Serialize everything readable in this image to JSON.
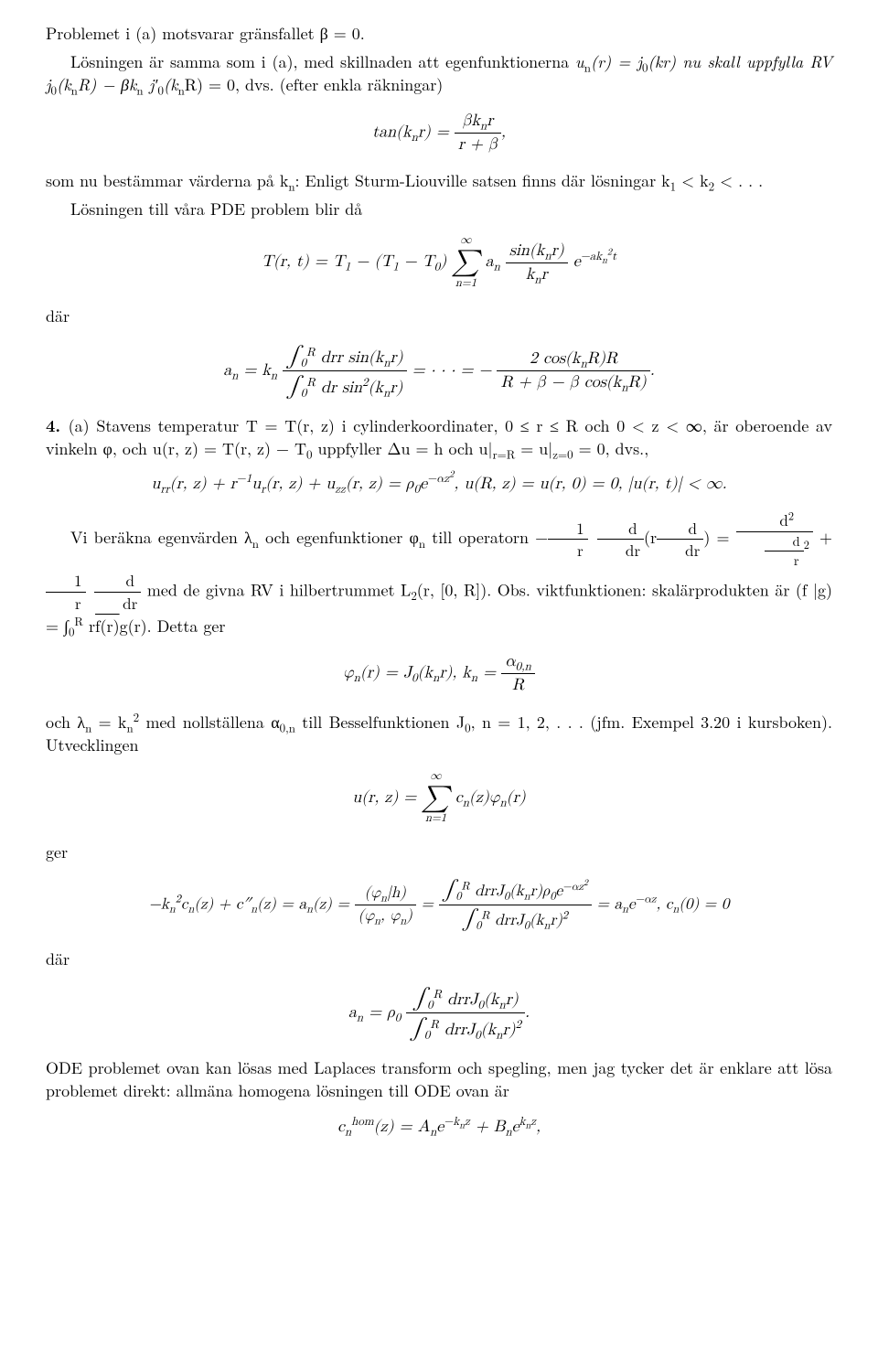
{
  "p1": "Problemet i (a) motsvarar gränsfallet β = 0.",
  "p2a": "Lösningen är samma som i (a), med skillnaden att egenfunktionerna ",
  "p2b": "u",
  "p2c": "n",
  "p2d": "(r) = j",
  "p2e": "0",
  "p2f": "(kr) nu skall uppfylla RV j",
  "p2g": "0",
  "p2h": "(k",
  "p2i": "n",
  "p2j": "R) − βk",
  "p2k": "n",
  "p2l": " j′",
  "p2m": "0",
  "p2n": "(k",
  "p2o": "n",
  "p2p": "R) = 0, dvs. (efter enkla räkningar)",
  "eq1a": "tan(k",
  "eq1b": "n",
  "eq1c": "r) = ",
  "eq1numA": "βk",
  "eq1numB": "n",
  "eq1numC": "r",
  "eq1den": "r + β",
  "eq1tail": ",",
  "p3a": "som nu bestämmar värderna på k",
  "p3b": "n",
  "p3c": ": Enligt Sturm-Liouville satsen finns där lösningar k",
  "p3d": "1",
  "p3e": " < k",
  "p3f": "2",
  "p3g": " < . . .",
  "p4": "Lösningen till våra PDE problem blir då",
  "eq2a": "T(r, t) = T",
  "eq2b": "1",
  "eq2c": " − (T",
  "eq2d": "1",
  "eq2e": " − T",
  "eq2f": "0",
  "eq2g": ") ",
  "eq2sumTop": "∞",
  "eq2sumBot": "n=1",
  "eq2h": " a",
  "eq2i": "n",
  "eq2fracNumA": "sin(k",
  "eq2fracNumB": "n",
  "eq2fracNumC": "r)",
  "eq2fracDenA": "k",
  "eq2fracDenB": "n",
  "eq2fracDenC": "r",
  "eq2j": " e",
  "eq2k": "−ak",
  "eq2l": "n",
  "eq2m": "2",
  "eq2nn": "t",
  "p5": "där",
  "eq3a": "a",
  "eq3b": "n",
  "eq3c": " = k",
  "eq3d": "n",
  "eq3numA": "∫",
  "eq3numTop": "R",
  "eq3numBot": "0",
  "eq3numB": " drr sin(k",
  "eq3numC": "n",
  "eq3numD": "r)",
  "eq3denA": "∫",
  "eq3denTop": "R",
  "eq3denBot": "0",
  "eq3denB": " dr sin",
  "eq3denC": "2",
  "eq3denD": "(k",
  "eq3denE": "n",
  "eq3denF": "r)",
  "eq3e": " = · · · = − ",
  "eq3f_numA": "2 cos(k",
  "eq3f_numB": "n",
  "eq3f_numC": "R)R",
  "eq3f_denA": "R + β − β cos(k",
  "eq3f_denB": "n",
  "eq3f_denC": "R)",
  "eq3g": ".",
  "p6a": "4. ",
  "p6b": "(a) Stavens temperatur T = T(r, z) i cylinderkoordinater, 0 ≤ r ≤ R och 0 < z < ∞, är oberoende av vinkeln φ, och u(r, z) = T(r, z) − T",
  "p6c": "0",
  "p6d": " uppfyller Δu = h och u|",
  "p6e": "r=R",
  "p6f": " = u|",
  "p6g": "z=0",
  "p6h": " = 0, dvs.,",
  "eq4a": "u",
  "eq4b": "rr",
  "eq4c": "(r, z) + r",
  "eq4d": "−1",
  "eq4e": "u",
  "eq4f": "r",
  "eq4g": "(r, z) + u",
  "eq4h": "zz",
  "eq4i": "(r, z) = ρ",
  "eq4j": "0",
  "eq4k": "e",
  "eq4l": "−αz",
  "eq4m": "2",
  "eq4n": ",   u(R, z) = u(r, 0) = 0,   |u(r, t)| < ∞.",
  "p7a": "Vi beräkna egenvärden λ",
  "p7b": "n",
  "p7c": " och egenfunktioner φ",
  "p7d": "n",
  "p7e": " till operatorn −",
  "p7frac1num": "1",
  "p7frac1den": "r",
  "p7frac2num": "d",
  "p7frac2den": "dr",
  "p7f": "(r",
  "p7frac3num": "d",
  "p7frac3den": "dr",
  "p7g": ") = ",
  "p7frac4numA": "d",
  "p7frac4numB": "2",
  "p7frac4denA": "d",
  "p7frac4denB": "r",
  "p7frac4denC": "2",
  "p7h": " + ",
  "p7frac5num": "1",
  "p7frac5den": "r",
  "p7frac6num": "d",
  "p7frac6den": "dr",
  "p7i": " med de givna RV i hilbertrummet L",
  "p7j": "2",
  "p7k": "(r, [0, R]). Obs. viktfunktionen: skalärprodukten är (f |g) = ∫",
  "p7intTop": "R",
  "p7intBot": "0",
  "p7l": " r",
  "p7m": "f(r)",
  "p7n": "g(r). Detta ger",
  "eq5a": "φ",
  "eq5b": "n",
  "eq5c": "(r) = J",
  "eq5d": "0",
  "eq5e": "(k",
  "eq5f": "n",
  "eq5g": "r),   k",
  "eq5h": "n",
  "eq5i": " = ",
  "eq5numA": "α",
  "eq5numB": "0,n",
  "eq5den": "R",
  "p8a": "och λ",
  "p8b": "n",
  "p8c": " = k",
  "p8d": "n",
  "p8e": "2",
  "p8f": " med nollställena α",
  "p8g": "0,n",
  "p8h": " till Besselfunktionen J",
  "p8i": "0",
  "p8j": ", n = 1, 2, . . . (jfm. Exempel 3.20 i kursboken). Utvecklingen",
  "eq6a": "u(r, z) = ",
  "eq6sumTop": "∞",
  "eq6sumBot": "n=1",
  "eq6b": " c",
  "eq6c": "n",
  "eq6d": "(z)φ",
  "eq6e": "n",
  "eq6f": "(r)",
  "p9": "ger",
  "eq7a": "−k",
  "eq7b": "n",
  "eq7c": "2",
  "eq7d": "c",
  "eq7e": "n",
  "eq7f": "(z) + c″",
  "eq7g": "n",
  "eq7h": "(z) = a",
  "eq7i": "n",
  "eq7j": "(z) = ",
  "eq7k_num": "(φ",
  "eq7k_numB": "n",
  "eq7k_numC": "|h)",
  "eq7k_den": "(φ",
  "eq7k_denB": "n",
  "eq7k_denC": ", φ",
  "eq7k_denD": "n",
  "eq7k_denE": ")",
  "eq7l": " = ",
  "eq7m_numA": "∫",
  "eq7m_numTop": "R",
  "eq7m_numBot": "0",
  "eq7m_numB": " drrJ",
  "eq7m_numC": "0",
  "eq7m_numD": "(k",
  "eq7m_numE": "n",
  "eq7m_numF": "r)ρ",
  "eq7m_numG": "0",
  "eq7m_numH": "e",
  "eq7m_numI": "−αz",
  "eq7m_numJ": "2",
  "eq7m_denA": "∫",
  "eq7m_denTop": "R",
  "eq7m_denBot": "0",
  "eq7m_denB": " drrJ",
  "eq7m_denC": "0",
  "eq7m_denD": "(k",
  "eq7m_denE": "n",
  "eq7m_denF": "r)",
  "eq7m_denG": "2",
  "eq7n": " = a",
  "eq7o": "n",
  "eq7p": "e",
  "eq7q": "−αz",
  "eq7r": ",   c",
  "eq7s": "n",
  "eq7t": "(0) = 0",
  "p10": "där",
  "eq8a": "a",
  "eq8b": "n",
  "eq8c": " = ρ",
  "eq8d": "0",
  "eq8numA": "∫",
  "eq8numTop": "R",
  "eq8numBot": "0",
  "eq8numB": " drrJ",
  "eq8numC": "0",
  "eq8numD": "(k",
  "eq8numE": "n",
  "eq8numF": "r)",
  "eq8denA": "∫",
  "eq8denTop": "R",
  "eq8denBot": "0",
  "eq8denB": " drrJ",
  "eq8denC": "0",
  "eq8denD": "(k",
  "eq8denE": "n",
  "eq8denF": "r)",
  "eq8denG": "2",
  "eq8e": ".",
  "p11": "ODE problemet ovan kan lösas med Laplaces transform och spegling, men jag tycker det är enklare att lösa problemet direkt: allmäna homogena lösningen till ODE ovan är",
  "eq9a": "c",
  "eq9b": "n",
  "eq9c": "hom",
  "eq9d": "(z) = A",
  "eq9e": "n",
  "eq9f": "e",
  "eq9g": "−k",
  "eq9h": "n",
  "eq9i": "z",
  "eq9j": " + B",
  "eq9k": "n",
  "eq9l": "e",
  "eq9m": "k",
  "eq9n": "n",
  "eq9o": "z",
  "eq9p": ","
}
